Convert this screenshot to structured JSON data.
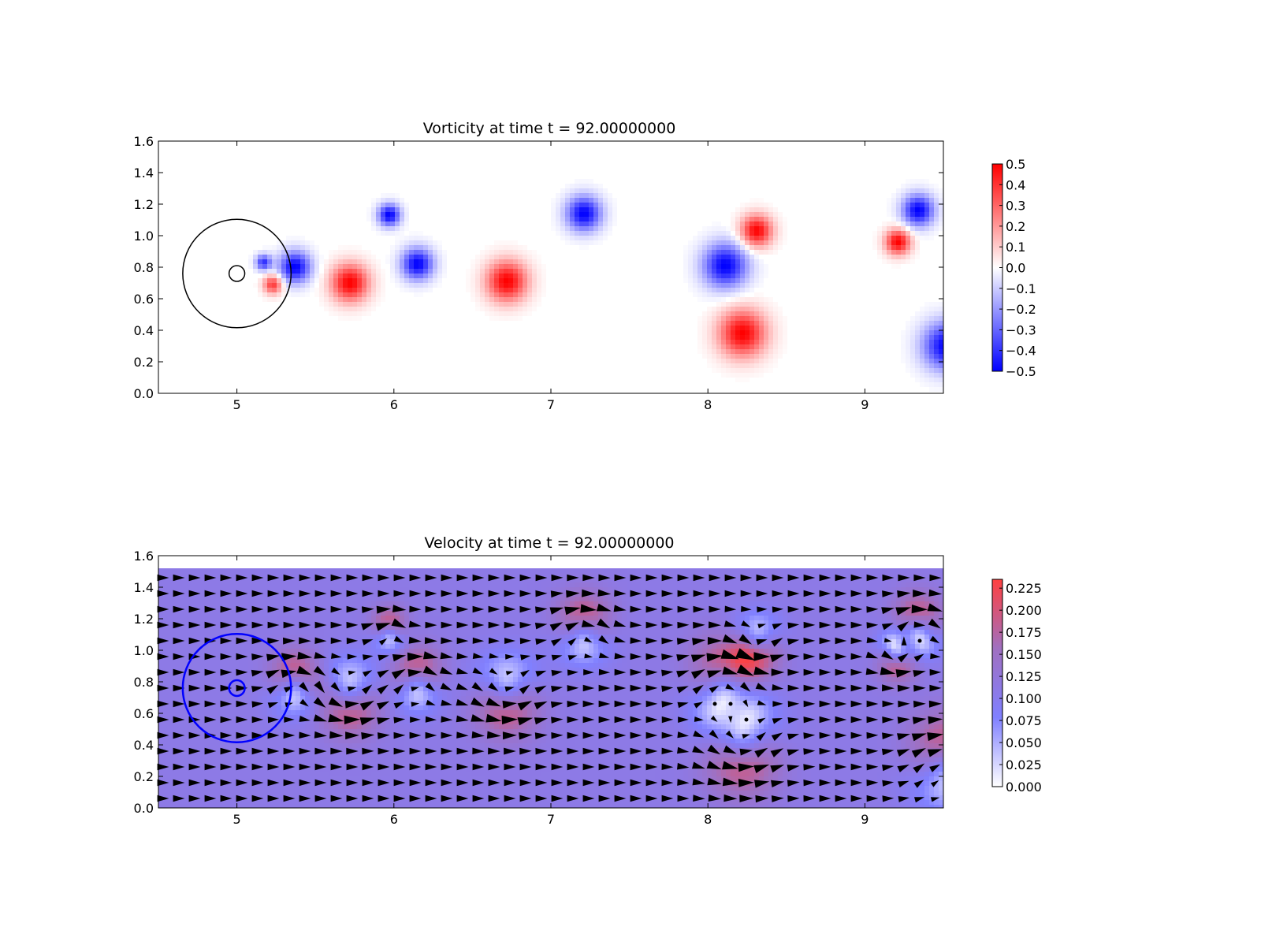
{
  "figure": {
    "background": "#ffffff"
  },
  "chart_data": [
    {
      "type": "heatmap",
      "title": "Vorticity at time t =    92.00000000",
      "xlabel": "",
      "ylabel": "",
      "xlim": [
        4.5,
        9.5
      ],
      "ylim": [
        0.0,
        1.6
      ],
      "xticks": [
        "5",
        "6",
        "7",
        "8",
        "9"
      ],
      "yticks": [
        "0.0",
        "0.2",
        "0.4",
        "0.6",
        "0.8",
        "1.0",
        "1.2",
        "1.4",
        "1.6"
      ],
      "colormap": "bwr",
      "colorbar": {
        "range": [
          -0.5,
          0.5
        ],
        "ticks": [
          "0.5",
          "0.4",
          "0.3",
          "0.2",
          "0.1",
          "0.0",
          "−0.1",
          "−0.2",
          "−0.3",
          "−0.4",
          "−0.5"
        ],
        "colors": [
          "#0000ff",
          "#ffffff",
          "#ff0000"
        ]
      },
      "vortices": [
        {
          "x": 5.37,
          "y": 0.8,
          "strength": -0.5,
          "radius": 0.1
        },
        {
          "x": 5.72,
          "y": 0.7,
          "strength": 0.5,
          "radius": 0.12
        },
        {
          "x": 5.97,
          "y": 1.13,
          "strength": -0.5,
          "radius": 0.07
        },
        {
          "x": 6.15,
          "y": 0.82,
          "strength": -0.5,
          "radius": 0.1
        },
        {
          "x": 6.72,
          "y": 0.71,
          "strength": 0.5,
          "radius": 0.13
        },
        {
          "x": 7.21,
          "y": 1.14,
          "strength": -0.5,
          "radius": 0.11
        },
        {
          "x": 8.11,
          "y": 0.81,
          "strength": -0.5,
          "radius": 0.14
        },
        {
          "x": 8.31,
          "y": 1.03,
          "strength": 0.5,
          "radius": 0.1
        },
        {
          "x": 8.22,
          "y": 0.38,
          "strength": 0.5,
          "radius": 0.15
        },
        {
          "x": 9.21,
          "y": 0.96,
          "strength": 0.5,
          "radius": 0.08
        },
        {
          "x": 9.34,
          "y": 1.16,
          "strength": -0.5,
          "radius": 0.1
        },
        {
          "x": 9.52,
          "y": 0.3,
          "strength": -0.5,
          "radius": 0.15
        },
        {
          "x": 5.23,
          "y": 0.69,
          "strength": 0.4,
          "radius": 0.06
        },
        {
          "x": 5.17,
          "y": 0.83,
          "strength": -0.4,
          "radius": 0.05
        }
      ],
      "circles": [
        {
          "x": 5.0,
          "y": 0.76,
          "r": 0.345,
          "color": "#000000"
        },
        {
          "x": 5.0,
          "y": 0.76,
          "r": 0.05,
          "color": "#000000"
        }
      ]
    },
    {
      "type": "heatmap",
      "title": "Velocity at time t =    92.00000000",
      "xlabel": "",
      "ylabel": "",
      "xlim": [
        4.5,
        9.5
      ],
      "ylim": [
        0.0,
        1.6
      ],
      "xticks": [
        "5",
        "6",
        "7",
        "8",
        "9"
      ],
      "yticks": [
        "0.0",
        "0.2",
        "0.4",
        "0.6",
        "0.8",
        "1.0",
        "1.2",
        "1.4",
        "1.6"
      ],
      "field_ylim": [
        0.0,
        1.52
      ],
      "colormap": "cool_white_red",
      "colorbar": {
        "range": [
          0.0,
          0.235
        ],
        "ticks": [
          "0.225",
          "0.200",
          "0.175",
          "0.150",
          "0.125",
          "0.100",
          "0.075",
          "0.050",
          "0.025",
          "0.000"
        ],
        "colors": [
          "#ffffff",
          "#8080ff",
          "#a070c0",
          "#ff4040"
        ]
      },
      "base_speed": 0.11,
      "vortices": [
        {
          "x": 5.37,
          "y": 0.8,
          "strength": -0.5,
          "radius": 0.1
        },
        {
          "x": 5.72,
          "y": 0.7,
          "strength": 0.5,
          "radius": 0.12
        },
        {
          "x": 5.97,
          "y": 1.13,
          "strength": -0.5,
          "radius": 0.07
        },
        {
          "x": 6.15,
          "y": 0.82,
          "strength": -0.5,
          "radius": 0.1
        },
        {
          "x": 6.72,
          "y": 0.71,
          "strength": 0.5,
          "radius": 0.13
        },
        {
          "x": 7.21,
          "y": 1.14,
          "strength": -0.5,
          "radius": 0.11
        },
        {
          "x": 8.11,
          "y": 0.81,
          "strength": -0.5,
          "radius": 0.14
        },
        {
          "x": 8.31,
          "y": 1.03,
          "strength": 0.5,
          "radius": 0.1
        },
        {
          "x": 8.22,
          "y": 0.38,
          "strength": 0.5,
          "radius": 0.15
        },
        {
          "x": 9.21,
          "y": 0.96,
          "strength": 0.5,
          "radius": 0.08
        },
        {
          "x": 9.34,
          "y": 1.16,
          "strength": -0.5,
          "radius": 0.1
        },
        {
          "x": 9.52,
          "y": 0.3,
          "strength": -0.5,
          "radius": 0.15
        }
      ],
      "circles": [
        {
          "x": 5.0,
          "y": 0.76,
          "r": 0.345,
          "color": "#0000ff"
        },
        {
          "x": 5.0,
          "y": 0.76,
          "r": 0.05,
          "color": "#0000ff"
        }
      ],
      "arrow_color": "#000000"
    }
  ]
}
